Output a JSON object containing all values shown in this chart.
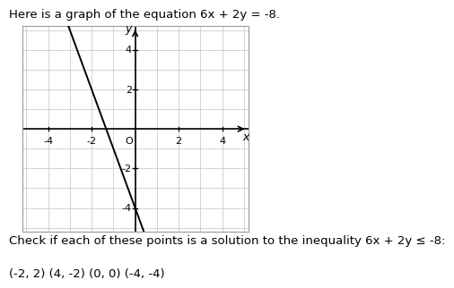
{
  "title_text": "Here is a graph of the equation 6x + 2y = -8.",
  "footer_text1": "Check if each of these points is a solution to the inequality 6x + 2y ≤ -8:",
  "footer_text2": "(-2, 2) (4, -2) (0, 0) (-4, -4)",
  "xlim": [
    -5.2,
    5.2
  ],
  "ylim": [
    -5.2,
    5.2
  ],
  "grid_color": "#cccccc",
  "line_color": "#000000",
  "bg_color": "#ffffff",
  "title_fontsize": 9.5,
  "footer_fontsize": 9.5,
  "tick_fontsize": 8,
  "axis_label_x": "x",
  "axis_label_y": "y"
}
